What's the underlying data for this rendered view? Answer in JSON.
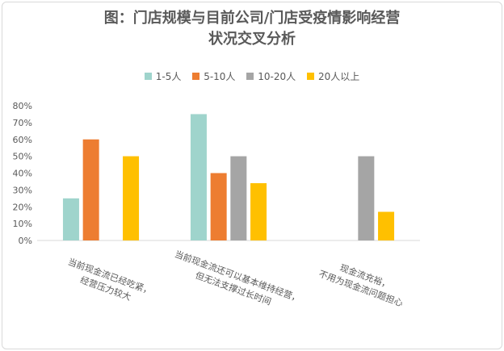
{
  "chart_data": {
    "type": "bar",
    "title_line1": "图：门店规模与目前公司/门店受疫情影响经营",
    "title_line2": "状况交叉分析",
    "categories": [
      [
        "当前现金流已经吃紧，",
        "经营压力较大"
      ],
      [
        "当前现金流还可以基本维持经营，",
        "但无法支撑过长时间"
      ],
      [
        "现金流充裕，",
        "不用为现金流问题担心"
      ]
    ],
    "series": [
      {
        "name": "1-5人",
        "color": "#9fd4cc",
        "values": [
          25,
          75,
          0
        ]
      },
      {
        "name": "5-10人",
        "color": "#ed7d31",
        "values": [
          60,
          40,
          0
        ]
      },
      {
        "name": "10-20人",
        "color": "#a5a5a5",
        "values": [
          0,
          50,
          50
        ]
      },
      {
        "name": "20人以上",
        "color": "#ffc000",
        "values": [
          50,
          34,
          17
        ]
      }
    ],
    "yticks": [
      "0%",
      "10%",
      "20%",
      "30%",
      "40%",
      "50%",
      "60%",
      "70%",
      "80%"
    ],
    "ylim": [
      0,
      80
    ],
    "grid": false,
    "legend_position": "top"
  }
}
